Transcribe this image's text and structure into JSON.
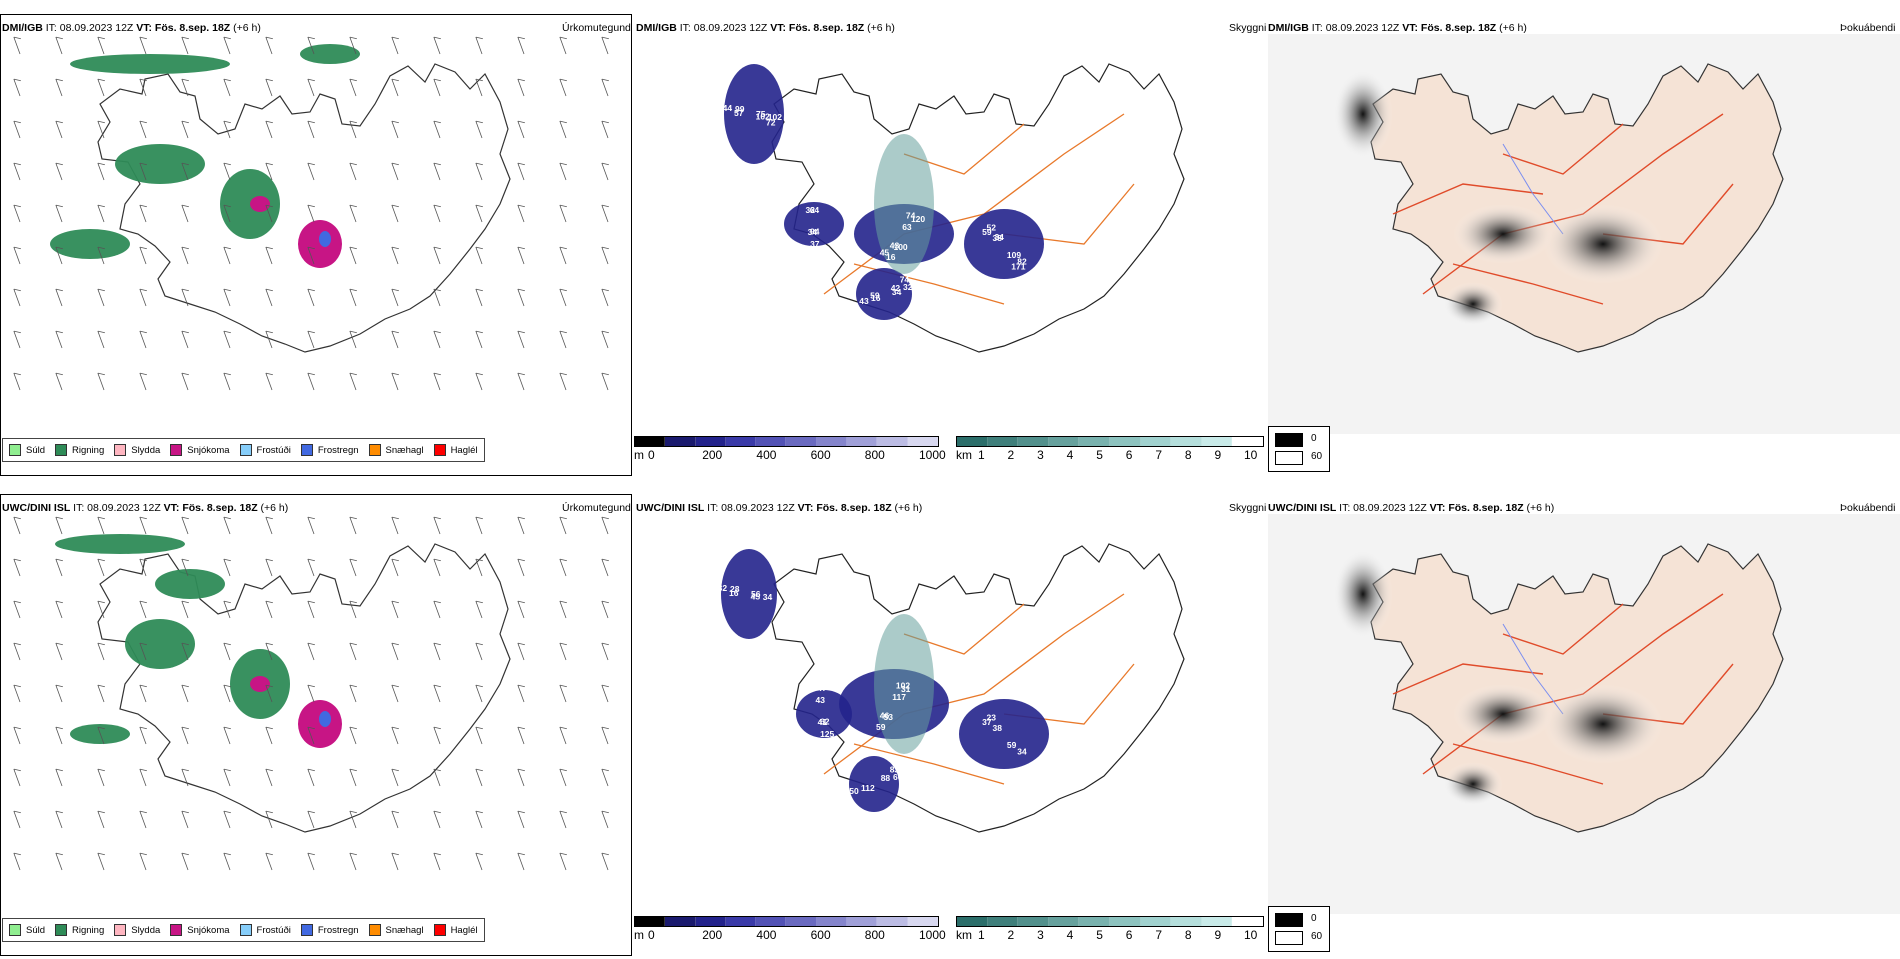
{
  "rows": [
    {
      "model": "DMI/IGB",
      "precip": {
        "title_model": "DMI/IGB",
        "title_rest": " IT: 08.09.2023 12Z ",
        "title_vt": "VT: Fös. 8.sep. 18Z",
        "title_tail": " (+6 h)",
        "right": "Úrkomutegund"
      },
      "cloud": {
        "title_model": "DMI/IGB",
        "title_rest": " IT: 08.09.2023 12Z ",
        "title_vt": "VT: Fös. 8.sep. 18Z",
        "title_tail": " (+6 h)",
        "right": "Skyggni",
        "labels": [
          "75",
          "100",
          "59",
          "74",
          "94",
          "57",
          "74",
          "82",
          "16",
          "32",
          "102",
          "16",
          "38",
          "42",
          "37",
          "44",
          "63",
          "109",
          "43",
          "44",
          "102",
          "43",
          "52",
          "32",
          "34",
          "99",
          "120",
          "171",
          "59",
          "64",
          "72",
          "45",
          "34",
          "34"
        ]
      },
      "fog": {
        "title_model": "DMI/IGB",
        "title_rest": " IT: 08.09.2023 12Z ",
        "title_vt": "VT: Fös. 8.sep. 18Z",
        "title_tail": " (+6 h)",
        "right": "Þokuábendi"
      }
    },
    {
      "model": "UWC/DINI ISL",
      "precip": {
        "title_model": "UWC/DINI ISL",
        "title_rest": " IT: 08.09.2023 12Z ",
        "title_vt": "VT: Fös. 8.sep. 18Z",
        "title_tail": " (+6 h)",
        "right": "Úrkomutegund"
      },
      "cloud": {
        "title_model": "UWC/DINI ISL",
        "title_rest": " IT: 08.09.2023 12Z ",
        "title_vt": "VT: Fös. 8.sep. 18Z",
        "title_tail": " (+6 h)",
        "right": "Skyggni",
        "labels": [
          "56",
          "53",
          "37",
          "83",
          "62",
          "16",
          "102",
          "34",
          "112",
          "43",
          "34",
          "59",
          "38",
          "88",
          "125",
          "82",
          "117",
          "59",
          "50",
          "47",
          "45",
          "46",
          "23",
          "60",
          "41",
          "28",
          "31"
        ]
      },
      "fog": {
        "title_model": "UWC/DINI ISL",
        "title_rest": " IT: 08.09.2023 12Z ",
        "title_vt": "VT: Fös. 8.sep. 18Z",
        "title_tail": " (+6 h)",
        "right": "Þokuábendi"
      }
    }
  ],
  "precip_legend": [
    {
      "label": "Súld",
      "color": "#90ee90"
    },
    {
      "label": "Rigning",
      "color": "#2e8b57"
    },
    {
      "label": "Slydda",
      "color": "#ffb6c1"
    },
    {
      "label": "Snjókoma",
      "color": "#c71585"
    },
    {
      "label": "Frostúði",
      "color": "#87cefa"
    },
    {
      "label": "Frostregn",
      "color": "#4169e1"
    },
    {
      "label": "Snæhagl",
      "color": "#ff8c00"
    },
    {
      "label": "Haglél",
      "color": "#ff0000"
    }
  ],
  "cloudbase_scale": {
    "unit": "m",
    "ticks": [
      "0",
      "200",
      "400",
      "600",
      "800",
      "1000"
    ],
    "colors": [
      "#000000",
      "#1a1a6e",
      "#23238c",
      "#3a3aa8",
      "#5252b5",
      "#6a6ac0",
      "#8585cc",
      "#a0a0d8",
      "#bcbce4",
      "#d8d8f0"
    ]
  },
  "visibility_scale": {
    "unit": "km",
    "ticks": [
      "1",
      "2",
      "3",
      "4",
      "5",
      "6",
      "7",
      "8",
      "9",
      "10"
    ],
    "colors": [
      "#2b6e6a",
      "#3f7f7b",
      "#52908c",
      "#66a19d",
      "#79b2ae",
      "#8dc3bf",
      "#a1d2cf",
      "#b5dfdc",
      "#c9ebe9",
      "#ffffff"
    ]
  },
  "fog_legend": [
    {
      "value": "0",
      "color": "#000000"
    },
    {
      "value": "60",
      "color": "#ffffff"
    }
  ]
}
